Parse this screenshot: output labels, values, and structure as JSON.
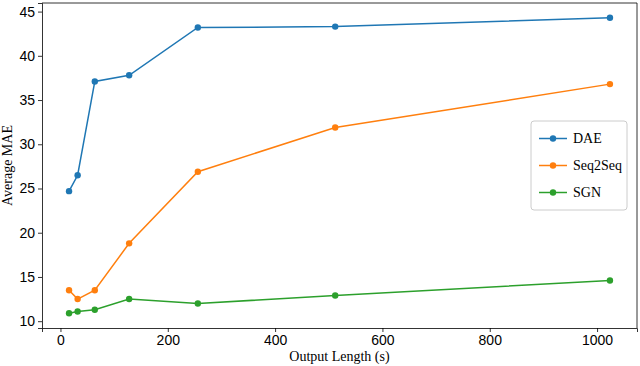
{
  "chart_data": {
    "type": "line",
    "x_label": "Output Length (s)",
    "y_label": "Average MAE",
    "x": [
      16,
      32,
      64,
      128,
      256,
      512,
      1024
    ],
    "series": [
      {
        "name": "DAE",
        "color": "#1f77b4",
        "marker": "circle",
        "values": [
          24.7,
          26.5,
          37.1,
          37.8,
          43.2,
          43.3,
          44.3
        ]
      },
      {
        "name": "Seq2Seq",
        "color": "#ff7f0e",
        "marker": "circle",
        "values": [
          13.5,
          12.5,
          13.5,
          18.8,
          26.9,
          31.9,
          36.8
        ]
      },
      {
        "name": "SGN",
        "color": "#2ca02c",
        "marker": "circle",
        "values": [
          10.9,
          11.1,
          11.3,
          12.5,
          12.0,
          12.9,
          14.6
        ]
      }
    ],
    "xlim": [
      -34.4,
      1074.4
    ],
    "xticks": [
      0,
      200,
      400,
      600,
      800,
      1000
    ],
    "ylim": [
      9.23,
      45.97
    ],
    "yticks": [
      10,
      15,
      20,
      25,
      30,
      35,
      40,
      45
    ],
    "legend": "center right",
    "grid": false
  }
}
